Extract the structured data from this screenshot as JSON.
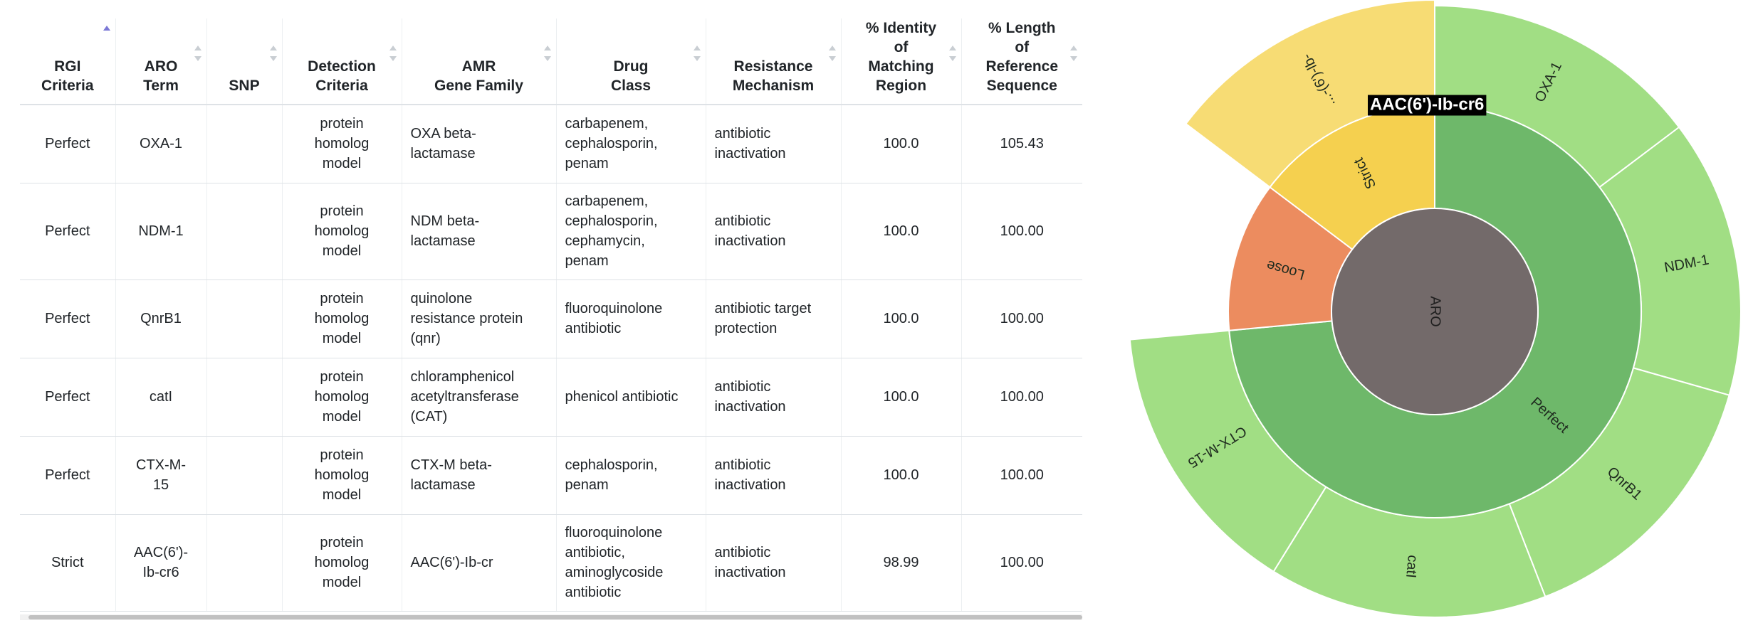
{
  "table": {
    "columns": [
      {
        "label_lines": [
          "RGI",
          "Criteria"
        ],
        "sort": "asc"
      },
      {
        "label_lines": [
          "ARO",
          "Term"
        ],
        "sort": "none"
      },
      {
        "label_lines": [
          "SNP"
        ],
        "sort": "none"
      },
      {
        "label_lines": [
          "Detection",
          "Criteria"
        ],
        "sort": "none"
      },
      {
        "label_lines": [
          "AMR",
          "Gene Family"
        ],
        "sort": "none"
      },
      {
        "label_lines": [
          "Drug",
          "Class"
        ],
        "sort": "none"
      },
      {
        "label_lines": [
          "Resistance",
          "Mechanism"
        ],
        "sort": "none"
      },
      {
        "label_lines": [
          "% Identity",
          "of",
          "Matching",
          "Region"
        ],
        "sort": "none"
      },
      {
        "label_lines": [
          "% Length",
          "of",
          "Reference",
          "Sequence"
        ],
        "sort": "none"
      }
    ],
    "rows": [
      {
        "criteria": "Perfect",
        "aro": [
          "OXA-1"
        ],
        "snp": "",
        "detection": [
          "protein",
          "homolog",
          "model"
        ],
        "family": [
          "OXA beta-",
          "lactamase"
        ],
        "drug": [
          "carbapenem,",
          "cephalosporin,",
          "penam"
        ],
        "mechanism": [
          "antibiotic",
          "inactivation"
        ],
        "identity": "100.0",
        "length": "105.43"
      },
      {
        "criteria": "Perfect",
        "aro": [
          "NDM-1"
        ],
        "snp": "",
        "detection": [
          "protein",
          "homolog",
          "model"
        ],
        "family": [
          "NDM beta-",
          "lactamase"
        ],
        "drug": [
          "carbapenem,",
          "cephalosporin,",
          "cephamycin,",
          "penam"
        ],
        "mechanism": [
          "antibiotic",
          "inactivation"
        ],
        "identity": "100.0",
        "length": "100.00"
      },
      {
        "criteria": "Perfect",
        "aro": [
          "QnrB1"
        ],
        "snp": "",
        "detection": [
          "protein",
          "homolog",
          "model"
        ],
        "family": [
          "quinolone",
          "resistance protein",
          "(qnr)"
        ],
        "drug": [
          "fluoroquinolone",
          "antibiotic"
        ],
        "mechanism": [
          "antibiotic target",
          "protection"
        ],
        "identity": "100.0",
        "length": "100.00"
      },
      {
        "criteria": "Perfect",
        "aro": [
          "catI"
        ],
        "snp": "",
        "detection": [
          "protein",
          "homolog",
          "model"
        ],
        "family": [
          "chloramphenicol",
          "acetyltransferase",
          "(CAT)"
        ],
        "drug": [
          "phenicol antibiotic"
        ],
        "mechanism": [
          "antibiotic",
          "inactivation"
        ],
        "identity": "100.0",
        "length": "100.00"
      },
      {
        "criteria": "Perfect",
        "aro": [
          "CTX-M-",
          "15"
        ],
        "snp": "",
        "detection": [
          "protein",
          "homolog",
          "model"
        ],
        "family": [
          "CTX-M beta-",
          "lactamase"
        ],
        "drug": [
          "cephalosporin,",
          "penam"
        ],
        "mechanism": [
          "antibiotic",
          "inactivation"
        ],
        "identity": "100.0",
        "length": "100.00"
      },
      {
        "criteria": "Strict",
        "aro": [
          "AAC(6')-",
          "Ib-cr6"
        ],
        "snp": "",
        "detection": [
          "protein",
          "homolog",
          "model"
        ],
        "family": [
          "AAC(6')-Ib-cr"
        ],
        "drug": [
          "fluoroquinolone",
          "antibiotic,",
          "aminoglycoside",
          "antibiotic"
        ],
        "mechanism": [
          "antibiotic",
          "inactivation"
        ],
        "identity": "98.99",
        "length": "100.00"
      }
    ]
  },
  "sunburst": {
    "root": "ARO",
    "tooltip": "AAC(6')-Ib-cr6",
    "colors": {
      "root": "#736a6a",
      "perfect": "#6eb86a",
      "perfect_leaf": "#a1de84",
      "strict": "#f5d04f",
      "strict_leaf": "#f7dc74",
      "loose": "#ec8c5f"
    },
    "criteria": [
      {
        "name": "Perfect",
        "key": "perfect",
        "share": 5,
        "label": "Perfect"
      },
      {
        "name": "Loose",
        "key": "loose",
        "share": 0.8,
        "label": "Loose"
      },
      {
        "name": "Strict",
        "key": "strict",
        "share": 1,
        "label": "Strict"
      }
    ],
    "genes": [
      {
        "name": "OXA-1",
        "criteria": "Perfect",
        "label": "OXA-1"
      },
      {
        "name": "NDM-1",
        "criteria": "Perfect",
        "label": "NDM-1"
      },
      {
        "name": "QnrB1",
        "criteria": "Perfect",
        "label": "QnrB1"
      },
      {
        "name": "catI",
        "criteria": "Perfect",
        "label": "catI"
      },
      {
        "name": "CTX-M-15",
        "criteria": "Perfect",
        "label": "CTX-M-15"
      },
      {
        "name": "AAC(6')-Ib-cr6",
        "criteria": "Strict",
        "label": "...-(6')-lb-"
      }
    ]
  }
}
